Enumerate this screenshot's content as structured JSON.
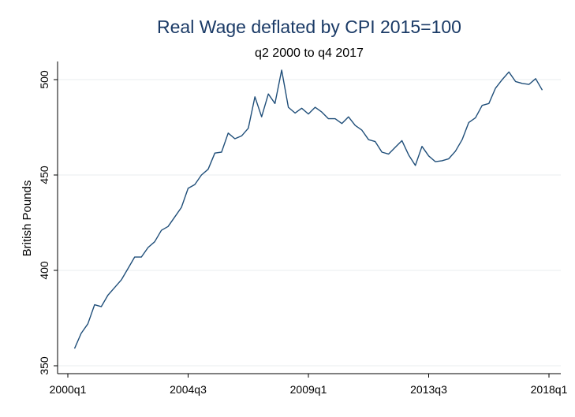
{
  "chart_data": {
    "type": "line",
    "title": "Real Wage deflated by CPI 2015=100",
    "subtitle": "q2 2000 to q4 2017",
    "xlabel": "",
    "ylabel": "British Pounds",
    "xlim": [
      "2000q1",
      "2018q1"
    ],
    "ylim": [
      350,
      505
    ],
    "x_ticks": [
      "2000q1",
      "2004q3",
      "2009q1",
      "2013q3",
      "2018q1"
    ],
    "y_ticks": [
      350,
      400,
      450,
      500
    ],
    "grid": true,
    "legend": false,
    "colors": {
      "line": "#1f4e79",
      "title": "#1a3a66",
      "grid": "#e8ecef"
    },
    "x": [
      "2000q2",
      "2000q3",
      "2000q4",
      "2001q1",
      "2001q2",
      "2001q3",
      "2001q4",
      "2002q1",
      "2002q2",
      "2002q3",
      "2002q4",
      "2003q1",
      "2003q2",
      "2003q3",
      "2003q4",
      "2004q1",
      "2004q2",
      "2004q3",
      "2004q4",
      "2005q1",
      "2005q2",
      "2005q3",
      "2005q4",
      "2006q1",
      "2006q2",
      "2006q3",
      "2006q4",
      "2007q1",
      "2007q2",
      "2007q3",
      "2007q4",
      "2008q1",
      "2008q2",
      "2008q3",
      "2008q4",
      "2009q1",
      "2009q2",
      "2009q3",
      "2009q4",
      "2010q1",
      "2010q2",
      "2010q3",
      "2010q4",
      "2011q1",
      "2011q2",
      "2011q3",
      "2011q4",
      "2012q1",
      "2012q2",
      "2012q3",
      "2012q4",
      "2013q1",
      "2013q2",
      "2013q3",
      "2013q4",
      "2014q1",
      "2014q2",
      "2014q3",
      "2014q4",
      "2015q1",
      "2015q2",
      "2015q3",
      "2015q4",
      "2016q1",
      "2016q2",
      "2016q3",
      "2016q4",
      "2017q1",
      "2017q2",
      "2017q3",
      "2017q4"
    ],
    "series": [
      {
        "values": [
          359,
          367,
          372,
          382,
          381,
          387,
          391,
          395,
          401,
          407,
          407,
          412,
          415,
          421,
          423,
          428,
          433,
          443,
          445,
          450,
          453,
          461.5,
          462,
          472,
          469,
          470.5,
          474.5,
          491,
          480.5,
          492.5,
          487.5,
          505,
          485.5,
          482.5,
          485,
          482,
          485.5,
          483,
          479.5,
          479.5,
          477,
          480.5,
          476,
          473.5,
          468.5,
          467.5,
          462,
          461,
          464.5,
          468,
          460.5,
          455,
          465,
          460,
          457,
          457.5,
          458.5,
          462.5,
          468.5,
          477.5,
          480,
          486.5,
          487.5,
          495.5,
          500,
          504,
          499,
          498,
          497.5,
          500.5,
          494.5
        ]
      }
    ]
  }
}
